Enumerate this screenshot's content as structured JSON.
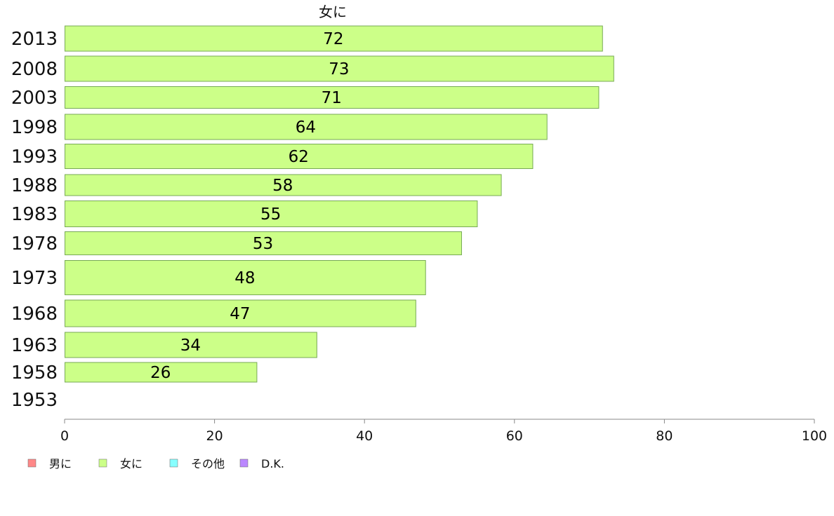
{
  "chart_data": {
    "type": "bar",
    "orientation": "horizontal",
    "title": "女に",
    "categories": [
      "2013",
      "2008",
      "2003",
      "1998",
      "1993",
      "1988",
      "1983",
      "1978",
      "1973",
      "1968",
      "1963",
      "1958",
      "1953"
    ],
    "series": [
      {
        "name": "女に",
        "color": "#ccff88",
        "values": [
          71.7,
          73.2,
          71.2,
          64.3,
          62.4,
          58.2,
          55.0,
          52.9,
          48.1,
          46.8,
          33.6,
          25.6,
          null
        ],
        "labels": [
          "72",
          "73",
          "71",
          "64",
          "62",
          "58",
          "55",
          "53",
          "48",
          "47",
          "34",
          "26",
          ""
        ]
      }
    ],
    "xlim": [
      0,
      100
    ],
    "xticks": [
      "0",
      "20",
      "40",
      "60",
      "80",
      "100"
    ],
    "grid": false,
    "legend": {
      "placement": "bottom-left",
      "items": [
        {
          "label": "男に",
          "color": "#ff8888"
        },
        {
          "label": "女に",
          "color": "#ccff88"
        },
        {
          "label": "その他",
          "color": "#88ffff"
        },
        {
          "label": "D.K.",
          "color": "#bb88ff"
        }
      ]
    }
  }
}
